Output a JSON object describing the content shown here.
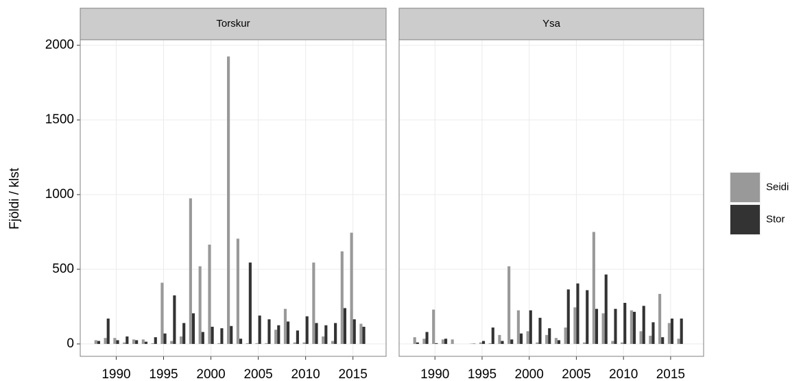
{
  "chart_data": {
    "type": "bar",
    "y_label": "Fjöldi / klst",
    "x": [
      1988,
      1989,
      1990,
      1991,
      1992,
      1993,
      1994,
      1995,
      1996,
      1997,
      1998,
      1999,
      2000,
      2001,
      2002,
      2003,
      2004,
      2005,
      2006,
      2007,
      2008,
      2009,
      2010,
      2011,
      2012,
      2013,
      2014,
      2015,
      2016
    ],
    "xlim": [
      1986.2,
      2018.5
    ],
    "xticks": [
      1990,
      1995,
      2000,
      2005,
      2010,
      2015
    ],
    "ylim": [
      -83,
      2037
    ],
    "yticks": [
      0,
      500,
      1000,
      1500,
      2000
    ],
    "grid": true,
    "legend": "right",
    "panels": [
      {
        "title": "Torskur",
        "series": [
          {
            "name": "Seidi",
            "color": "#999999",
            "values": [
              25,
              40,
              40,
              10,
              30,
              30,
              5,
              410,
              20,
              50,
              975,
              520,
              665,
              5,
              1925,
              705,
              5,
              5,
              5,
              95,
              235,
              10,
              10,
              545,
              50,
              20,
              620,
              745,
              135
            ]
          },
          {
            "name": "Stor",
            "color": "#333333",
            "values": [
              20,
              170,
              25,
              50,
              25,
              15,
              45,
              70,
              325,
              140,
              205,
              80,
              115,
              105,
              120,
              35,
              545,
              190,
              165,
              125,
              150,
              90,
              185,
              140,
              125,
              140,
              240,
              165,
              115
            ]
          }
        ]
      },
      {
        "title": "Ysa",
        "series": [
          {
            "name": "Seidi",
            "color": "#999999",
            "values": [
              45,
              35,
              230,
              30,
              30,
              0,
              2,
              10,
              5,
              60,
              520,
              225,
              85,
              10,
              60,
              40,
              110,
              245,
              10,
              750,
              205,
              20,
              10,
              225,
              85,
              55,
              335,
              140,
              35
            ]
          },
          {
            "name": "Stor",
            "color": "#333333",
            "values": [
              10,
              80,
              5,
              35,
              0,
              0,
              2,
              20,
              110,
              20,
              30,
              70,
              225,
              175,
              105,
              25,
              365,
              405,
              360,
              235,
              465,
              235,
              275,
              215,
              255,
              145,
              45,
              170,
              170
            ]
          }
        ]
      }
    ]
  }
}
